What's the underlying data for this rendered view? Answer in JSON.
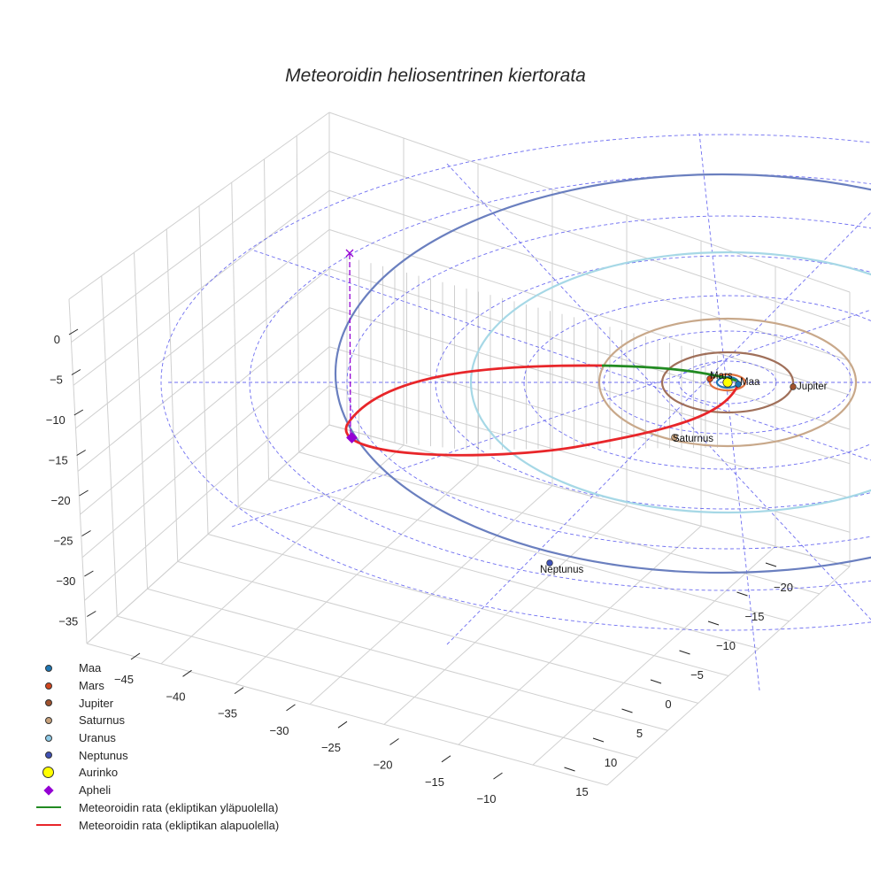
{
  "figure": {
    "title": "Meteoroidin heliosentrinen kiertorata"
  },
  "chart_data": {
    "type": "scatter3d",
    "title": "Meteoroidin heliosentrinen kiertorata",
    "xlabel": "",
    "ylabel": "",
    "zlabel": "",
    "axes": {
      "x_ticks": [
        -45,
        -40,
        -35,
        -30,
        -25,
        -20,
        -15,
        -10
      ],
      "y_ticks": [
        -20,
        -15,
        -10,
        -5,
        0,
        5,
        10,
        15
      ],
      "z_ticks": [
        0,
        -5,
        -10,
        -15,
        -20,
        -25,
        -30,
        -35
      ],
      "grid": true
    },
    "series": [
      {
        "name": "Maa",
        "kind": "planet",
        "color": "#1f77b4",
        "orbit_color": "#1f77b4",
        "orbit_radius_au": 1.0
      },
      {
        "name": "Mars",
        "kind": "planet",
        "color": "#d2461e",
        "orbit_color": "#e0703c",
        "orbit_radius_au": 1.52
      },
      {
        "name": "Jupiter",
        "kind": "planet",
        "color": "#a0522d",
        "orbit_color": "#a0705a",
        "orbit_radius_au": 5.2
      },
      {
        "name": "Saturnus",
        "kind": "planet",
        "color": "#c8a27c",
        "orbit_color": "#c8a88a",
        "orbit_radius_au": 9.5
      },
      {
        "name": "Uranus",
        "kind": "planet",
        "color": "#8ecae6",
        "orbit_color": "#a6d8e6",
        "orbit_radius_au": 19.2
      },
      {
        "name": "Neptunus",
        "kind": "planet",
        "color": "#3f51b5",
        "orbit_color": "#6a7fbf",
        "orbit_radius_au": 30.1
      },
      {
        "name": "Aurinko",
        "kind": "sun",
        "color": "#ffff00"
      },
      {
        "name": "Apheli",
        "kind": "marker",
        "color": "#9400d3"
      },
      {
        "name": "Meteoroidin rata (ekliptikan yläpuolella)",
        "kind": "line",
        "color": "#228b22"
      },
      {
        "name": "Meteoroidin rata (ekliptikan alapuolella)",
        "kind": "line",
        "color": "#e8262a"
      }
    ],
    "annotations": [
      "Maa",
      "Mars",
      "Jupiter",
      "Saturnus",
      "Neptunus"
    ]
  },
  "legend": {
    "items": [
      {
        "label": "Maa",
        "type": "dot",
        "color": "#1f77b4"
      },
      {
        "label": "Mars",
        "type": "dot",
        "color": "#d2461e"
      },
      {
        "label": "Jupiter",
        "type": "dot",
        "color": "#a0522d"
      },
      {
        "label": "Saturnus",
        "type": "dot",
        "color": "#c8a27c"
      },
      {
        "label": "Uranus",
        "type": "dot",
        "color": "#8ecae6"
      },
      {
        "label": "Neptunus",
        "type": "dot",
        "color": "#3f51b5"
      },
      {
        "label": "Aurinko",
        "type": "big",
        "color": "#ffff00"
      },
      {
        "label": "Apheli",
        "type": "diamond",
        "color": "#9400d3"
      },
      {
        "label": "Meteoroidin rata (ekliptikan yläpuolella)",
        "type": "line",
        "color": "#228b22"
      },
      {
        "label": "Meteoroidin rata (ekliptikan alapuolella)",
        "type": "line",
        "color": "#e8262a"
      }
    ]
  },
  "labels": {
    "maa": "Maa",
    "mars": "Mars",
    "jupiter": "Jupiter",
    "saturnus": "Saturnus",
    "neptunus": "Neptunus"
  }
}
